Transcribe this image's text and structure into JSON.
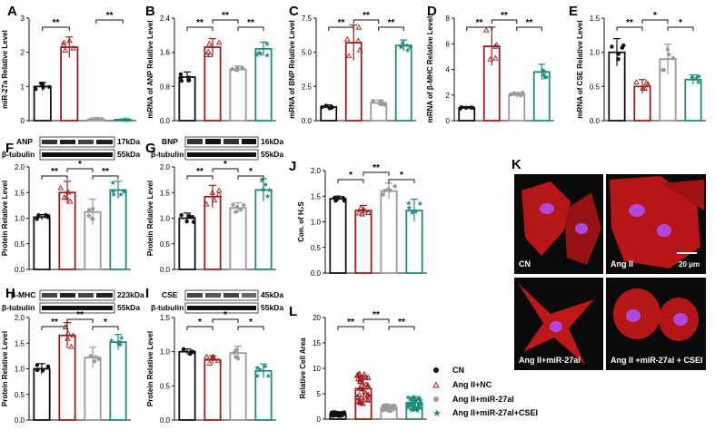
{
  "colors": {
    "CN": "#111111",
    "NC": "#9b1c1c",
    "miR": "#9a9a9a",
    "CSEI": "#1f8a7e",
    "cell": "#c81818",
    "nucleus": "#b048e0"
  },
  "panels": {
    "A": {
      "letter": "A",
      "ylabel": "miR-27a Relative Level",
      "yticks": [
        "0",
        "1",
        "2",
        "3"
      ]
    },
    "B": {
      "letter": "B",
      "ylabel": "mRNA of ANP Relative Level",
      "yticks": [
        "0.0",
        "0.8",
        "1.6",
        "2.4"
      ]
    },
    "C": {
      "letter": "C",
      "ylabel": "mRNA of BNP Relative Level",
      "yticks": [
        "0.0",
        "2.5",
        "5.0",
        "7.5"
      ]
    },
    "D": {
      "letter": "D",
      "ylabel": "mRNA of β-MHC Relative Level",
      "yticks": [
        "0",
        "2",
        "4",
        "6",
        "8"
      ]
    },
    "E": {
      "letter": "E",
      "ylabel": "mRNA of CSE Relative Level",
      "yticks": [
        "0.0",
        "0.5",
        "1.0",
        "1.5"
      ]
    },
    "F": {
      "letter": "F",
      "ylabel": "Protein Relative Level",
      "yticks": [
        "0.0",
        "0.5",
        "1.0",
        "1.5",
        "2.0"
      ],
      "blot": {
        "target": "ANP",
        "target_kda": "17kDa",
        "ref": "β-tubulin",
        "ref_kda": "55kDa"
      }
    },
    "G": {
      "letter": "G",
      "ylabel": "Protein Relative Level",
      "yticks": [
        "0.0",
        "0.5",
        "1.0",
        "1.5",
        "2.0"
      ],
      "blot": {
        "target": "BNP",
        "target_kda": "16kDa",
        "ref": "β-tubulin",
        "ref_kda": "55kDa"
      }
    },
    "H": {
      "letter": "H",
      "ylabel": "Protein Relative Level",
      "yticks": [
        "0.0",
        "0.5",
        "1.0",
        "1.5",
        "2.0"
      ],
      "blot": {
        "target": "β-MHC",
        "target_kda": "223kDa",
        "ref": "β-tubulin",
        "ref_kda": "55kDa"
      }
    },
    "I": {
      "letter": "I",
      "ylabel": "Protein Relative Level",
      "yticks": [
        "0.0",
        "0.5",
        "1.0",
        "1.5"
      ],
      "blot": {
        "target": "CSE",
        "target_kda": "45kDa",
        "ref": "β-tubulin",
        "ref_kda": "55kDa"
      }
    },
    "J": {
      "letter": "J",
      "ylabel": "Con. of H₂S",
      "yticks": [
        "0.0",
        "0.5",
        "1.0",
        "1.5",
        "2.0"
      ]
    },
    "L": {
      "letter": "L",
      "ylabel": "Relative Cell Area",
      "yticks": [
        "0",
        "5",
        "10",
        "15",
        "20"
      ]
    }
  },
  "legend": [
    "CN",
    "Ang II+NC",
    "Ang II+miR-27al",
    "Ang II+miR-27al+CSEI"
  ],
  "micrographs": {
    "letter": "K",
    "labels": [
      "CN",
      "Ang II",
      "Ang II+miR-27al",
      "Ang II +miR-27al + CSEI"
    ],
    "scale_bar": "20 μm"
  },
  "chart_data": [
    {
      "panel": "A",
      "type": "bar",
      "categories": [
        "CN",
        "Ang II+NC",
        "Ang II+miR-27al",
        "Ang II+miR-27al+CSEI"
      ],
      "values": [
        1.0,
        2.15,
        0.04,
        0.03
      ],
      "errors": [
        0.12,
        0.3,
        0.02,
        0.02
      ],
      "ylim": [
        0,
        3
      ],
      "significance": [
        {
          "pair": [
            0,
            1
          ],
          "label": "**"
        },
        {
          "pair": [
            2,
            3
          ],
          "label": "**"
        }
      ]
    },
    {
      "panel": "B",
      "type": "bar",
      "categories": [
        "CN",
        "Ang II+NC",
        "Ang II+miR-27al",
        "Ang II+miR-27al+CSEI"
      ],
      "values": [
        1.02,
        1.72,
        1.2,
        1.68
      ],
      "errors": [
        0.12,
        0.2,
        0.08,
        0.16
      ],
      "ylim": [
        0,
        2.4
      ],
      "significance": [
        {
          "pair": [
            0,
            1
          ],
          "label": "**"
        },
        {
          "pair": [
            1,
            2
          ],
          "label": "**"
        },
        {
          "pair": [
            2,
            3
          ],
          "label": "**"
        }
      ]
    },
    {
      "panel": "C",
      "type": "bar",
      "categories": [
        "CN",
        "Ang II+NC",
        "Ang II+miR-27al",
        "Ang II+miR-27al+CSEI"
      ],
      "values": [
        1.0,
        5.7,
        1.3,
        5.5
      ],
      "errors": [
        0.15,
        1.3,
        0.2,
        0.4
      ],
      "ylim": [
        0,
        7.5
      ],
      "significance": [
        {
          "pair": [
            0,
            1
          ],
          "label": "**"
        },
        {
          "pair": [
            1,
            2
          ],
          "label": "**"
        },
        {
          "pair": [
            2,
            3
          ],
          "label": "**"
        }
      ]
    },
    {
      "panel": "D",
      "type": "bar",
      "categories": [
        "CN",
        "Ang II+NC",
        "Ang II+miR-27al",
        "Ang II+miR-27al+CSEI"
      ],
      "values": [
        1.0,
        5.8,
        2.0,
        3.8
      ],
      "errors": [
        0.1,
        1.5,
        0.2,
        0.6
      ],
      "ylim": [
        0,
        8
      ],
      "significance": [
        {
          "pair": [
            0,
            1
          ],
          "label": "**"
        },
        {
          "pair": [
            1,
            2
          ],
          "label": "**"
        },
        {
          "pair": [
            2,
            3
          ],
          "label": "**"
        }
      ]
    },
    {
      "panel": "E",
      "type": "bar",
      "categories": [
        "CN",
        "Ang II+NC",
        "Ang II+miR-27al",
        "Ang II+miR-27al+CSEI"
      ],
      "values": [
        1.0,
        0.5,
        0.9,
        0.6
      ],
      "errors": [
        0.2,
        0.1,
        0.22,
        0.07
      ],
      "ylim": [
        0,
        1.5
      ],
      "significance": [
        {
          "pair": [
            0,
            1
          ],
          "label": "**"
        },
        {
          "pair": [
            1,
            2
          ],
          "label": "*"
        },
        {
          "pair": [
            2,
            3
          ],
          "label": "*"
        }
      ]
    },
    {
      "panel": "F",
      "type": "bar",
      "categories": [
        "CN",
        "Ang II+NC",
        "Ang II+miR-27al",
        "Ang II+miR-27al+CSEI"
      ],
      "values": [
        1.02,
        1.5,
        1.12,
        1.55
      ],
      "errors": [
        0.05,
        0.22,
        0.25,
        0.17
      ],
      "ylim": [
        0,
        2.0
      ],
      "significance": [
        {
          "pair": [
            0,
            1
          ],
          "label": "**"
        },
        {
          "pair": [
            1,
            2
          ],
          "label": "*"
        },
        {
          "pair": [
            2,
            3
          ],
          "label": "**"
        }
      ]
    },
    {
      "panel": "G",
      "type": "bar",
      "categories": [
        "CN",
        "Ang II+NC",
        "Ang II+miR-27al",
        "Ang II+miR-27al+CSEI"
      ],
      "values": [
        1.0,
        1.42,
        1.2,
        1.55
      ],
      "errors": [
        0.1,
        0.22,
        0.1,
        0.22
      ],
      "ylim": [
        0,
        2.0
      ],
      "significance": [
        {
          "pair": [
            0,
            1
          ],
          "label": "**"
        },
        {
          "pair": [
            1,
            2
          ],
          "label": "*"
        },
        {
          "pair": [
            2,
            3
          ],
          "label": "*"
        }
      ]
    },
    {
      "panel": "H",
      "type": "bar",
      "categories": [
        "CN",
        "Ang II+NC",
        "Ang II+miR-27al",
        "Ang II+miR-27al+CSEI"
      ],
      "values": [
        1.0,
        1.65,
        1.22,
        1.52
      ],
      "errors": [
        0.1,
        0.25,
        0.2,
        0.15
      ],
      "ylim": [
        0,
        2.0
      ],
      "significance": [
        {
          "pair": [
            0,
            1
          ],
          "label": "**"
        },
        {
          "pair": [
            1,
            2
          ],
          "label": "**"
        },
        {
          "pair": [
            2,
            3
          ],
          "label": "*"
        }
      ]
    },
    {
      "panel": "I",
      "type": "bar",
      "categories": [
        "CN",
        "Ang II+NC",
        "Ang II+miR-27al",
        "Ang II+miR-27al+CSEI"
      ],
      "values": [
        1.0,
        0.88,
        0.98,
        0.72
      ],
      "errors": [
        0.04,
        0.06,
        0.1,
        0.1
      ],
      "ylim": [
        0,
        1.5
      ],
      "significance": [
        {
          "pair": [
            0,
            1
          ],
          "label": "*"
        },
        {
          "pair": [
            1,
            2
          ],
          "label": "*"
        },
        {
          "pair": [
            2,
            3
          ],
          "label": "*"
        }
      ]
    },
    {
      "panel": "J",
      "type": "bar",
      "categories": [
        "CN",
        "Ang II+NC",
        "Ang II+miR-27al",
        "Ang II+miR-27al+CSEI"
      ],
      "values": [
        1.45,
        1.22,
        1.6,
        1.22
      ],
      "errors": [
        0.05,
        0.1,
        0.15,
        0.22
      ],
      "ylim": [
        0,
        2.0
      ],
      "significance": [
        {
          "pair": [
            0,
            1
          ],
          "label": "*"
        },
        {
          "pair": [
            1,
            2
          ],
          "label": "**"
        },
        {
          "pair": [
            2,
            3
          ],
          "label": "*"
        }
      ]
    },
    {
      "panel": "L",
      "type": "bar",
      "categories": [
        "CN",
        "Ang II+NC",
        "Ang II+miR-27al",
        "Ang II+miR-27al+CSEI"
      ],
      "values": [
        1.0,
        6.0,
        2.2,
        3.2
      ],
      "errors": [
        0.3,
        2.5,
        0.5,
        1.2
      ],
      "ylim": [
        0,
        20
      ],
      "significance": [
        {
          "pair": [
            0,
            1
          ],
          "label": "**"
        },
        {
          "pair": [
            1,
            2
          ],
          "label": "**"
        },
        {
          "pair": [
            2,
            3
          ],
          "label": "**"
        }
      ]
    }
  ]
}
